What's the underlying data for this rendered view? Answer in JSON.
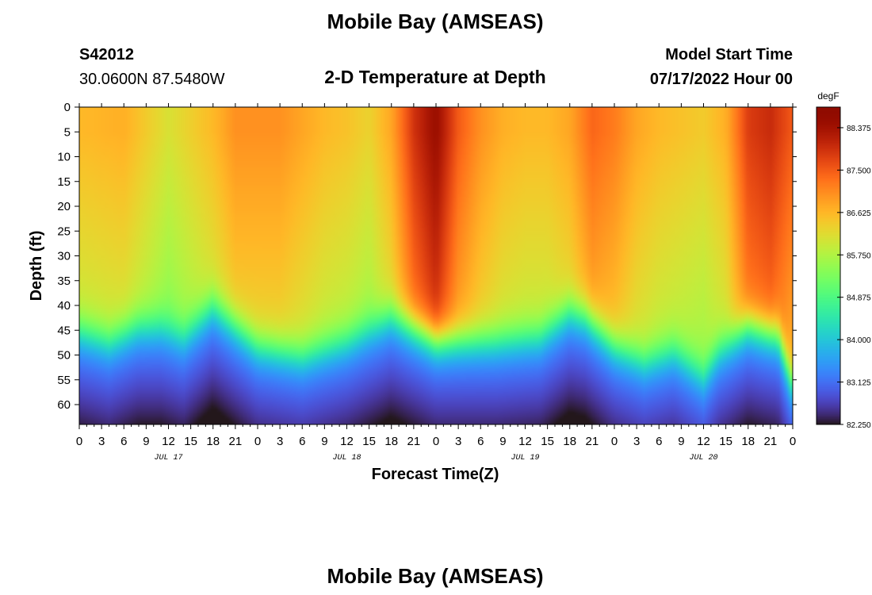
{
  "header": {
    "title": "Mobile Bay (AMSEAS)",
    "station_id": "S42012",
    "coords": "30.0600N  87.5480W",
    "plot_title": "2-D Temperature at Depth",
    "start_label": "Model Start Time",
    "start_value": "07/17/2022 Hour 00"
  },
  "footer": {
    "title": "Mobile Bay (AMSEAS)"
  },
  "chart_data": {
    "type": "heatmap",
    "xlabel": "Forecast Time(Z)",
    "ylabel": "Depth (ft)",
    "x_range": [
      0,
      96
    ],
    "y_range": [
      0,
      64
    ],
    "y_ticks": [
      0,
      5,
      10,
      15,
      20,
      25,
      30,
      35,
      40,
      45,
      50,
      55,
      60
    ],
    "x_tick_hours": [
      0,
      3,
      6,
      9,
      12,
      15,
      18,
      21,
      24,
      27,
      30,
      33,
      36,
      39,
      42,
      45,
      48,
      51,
      54,
      57,
      60,
      63,
      66,
      69,
      72,
      75,
      78,
      81,
      84,
      87,
      90,
      93,
      96
    ],
    "x_tick_labels": [
      "0",
      "3",
      "6",
      "9",
      "12",
      "15",
      "18",
      "21",
      "0",
      "3",
      "6",
      "9",
      "12",
      "15",
      "18",
      "21",
      "0",
      "3",
      "6",
      "9",
      "12",
      "15",
      "18",
      "21",
      "0",
      "3",
      "6",
      "9",
      "12",
      "15",
      "18",
      "21",
      "0"
    ],
    "date_labels": [
      {
        "hour": 12,
        "text": "JUL 17"
      },
      {
        "hour": 36,
        "text": "JUL 18"
      },
      {
        "hour": 60,
        "text": "JUL 19"
      },
      {
        "hour": 84,
        "text": "JUL 20"
      }
    ],
    "colorbar": {
      "unit": "degF",
      "min": 82.25,
      "max": 88.8,
      "tick_values": [
        88.375,
        87.5,
        86.625,
        85.75,
        84.875,
        84.0,
        83.125,
        82.25
      ],
      "tick_labels": [
        "88.375",
        "87.500",
        "86.625",
        "85.750",
        "84.875",
        "84.000",
        "83.125",
        "82.250"
      ],
      "colormap": "turbo"
    },
    "thermocline_depth_ft": {
      "hours": [
        0,
        4,
        8,
        11,
        14,
        18,
        24,
        30,
        36,
        42,
        48,
        52,
        56,
        62,
        66,
        68,
        72,
        76,
        80,
        84,
        86,
        90,
        94,
        96
      ],
      "depth": [
        45,
        47,
        44,
        44,
        46,
        40,
        48,
        50,
        47,
        42,
        47,
        47,
        47,
        46,
        41,
        42,
        48,
        51,
        49,
        54,
        49,
        44,
        46,
        56
      ]
    },
    "surface_temp_degF": {
      "hours": [
        0,
        6,
        12,
        18,
        21,
        27,
        30,
        33,
        36,
        39,
        42,
        45,
        48,
        51,
        54,
        57,
        60,
        63,
        66,
        69,
        72,
        75,
        78,
        81,
        84,
        87,
        90,
        93,
        96
      ],
      "temp": [
        86.6,
        86.7,
        86.1,
        86.6,
        87.0,
        87.0,
        86.8,
        86.6,
        86.5,
        86.3,
        86.8,
        87.9,
        88.5,
        87.5,
        87.0,
        86.7,
        86.6,
        86.6,
        86.8,
        87.4,
        87.2,
        86.8,
        86.6,
        86.5,
        86.4,
        86.7,
        87.8,
        88.0,
        87.5
      ]
    }
  }
}
